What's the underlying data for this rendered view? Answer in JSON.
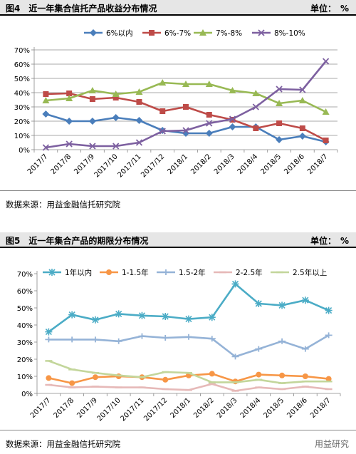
{
  "figures": [
    {
      "title": "图4　近一年集合信托产品收益分布情况",
      "unit": "单位：　%",
      "source": "数据来源：用益金融信托研究院"
    },
    {
      "title": "图5　近一年集合产品的期限分布情况",
      "unit": "单位：　%",
      "source": "数据来源：用益金融信托研究院"
    }
  ],
  "watermark": "用益研究",
  "chart_data": [
    {
      "type": "line",
      "categories": [
        "2017/7",
        "2017/8",
        "2017/9",
        "2017/10",
        "2017/11",
        "2017/12",
        "2018/1",
        "2018/2",
        "2018/3",
        "2018/4",
        "2018/5",
        "2018/6",
        "2018/7"
      ],
      "yticks": [
        "0%",
        "10%",
        "20%",
        "30%",
        "40%",
        "50%",
        "60%",
        "70%"
      ],
      "ylim": [
        0,
        70
      ],
      "grid": true,
      "legend_position": "top",
      "series": [
        {
          "name": "6%以内",
          "color": "#4a7ebb",
          "marker": "diamond",
          "values": [
            25,
            20,
            20,
            22.5,
            20.5,
            13.5,
            11.5,
            11.5,
            16,
            16,
            7,
            9.5,
            5.5
          ]
        },
        {
          "name": "6%-7%",
          "color": "#be4b48",
          "marker": "square",
          "values": [
            39,
            39.5,
            35.5,
            36.5,
            33.5,
            27,
            30,
            24.5,
            21,
            15,
            18.5,
            15,
            6.5
          ]
        },
        {
          "name": "7%-8%",
          "color": "#98b954",
          "marker": "triangle",
          "values": [
            34.5,
            36,
            41.5,
            39,
            40.5,
            47,
            46,
            46,
            41.5,
            39.5,
            32.5,
            34.5,
            26.5
          ]
        },
        {
          "name": "8%-10%",
          "color": "#7d60a0",
          "marker": "x",
          "values": [
            1.5,
            4,
            2.5,
            2.5,
            5,
            13,
            13.5,
            18.5,
            21.5,
            30,
            42.5,
            42,
            62
          ]
        }
      ]
    },
    {
      "type": "line",
      "categories": [
        "2017/7",
        "2017/8",
        "2017/9",
        "2017/10",
        "2017/11",
        "2017/12",
        "2018/1",
        "2018/2",
        "2018/3",
        "2018/4",
        "2018/5",
        "2018/6",
        "2018/7"
      ],
      "yticks": [
        "0%",
        "10%",
        "20%",
        "30%",
        "40%",
        "50%",
        "60%",
        "70%"
      ],
      "ylim": [
        0,
        70
      ],
      "grid": false,
      "legend_position": "top",
      "series": [
        {
          "name": "1年以内",
          "color": "#4bacc6",
          "marker": "star",
          "values": [
            36,
            46,
            43,
            46.5,
            45.5,
            45,
            43.5,
            44.5,
            64,
            52.5,
            51.5,
            54.5,
            48.5
          ]
        },
        {
          "name": "1-1.5年",
          "color": "#f79646",
          "marker": "circle",
          "values": [
            9,
            6,
            9.5,
            10,
            9.5,
            8,
            10.5,
            11.5,
            7,
            11,
            10.5,
            10,
            8.5
          ]
        },
        {
          "name": "1.5-2年",
          "color": "#95b3d7",
          "marker": "plus",
          "values": [
            31.5,
            31.5,
            31.5,
            30.5,
            33.5,
            32.5,
            33,
            32,
            21.5,
            26,
            30.5,
            26,
            34
          ]
        },
        {
          "name": "2-2.5年",
          "color": "#e6b9b8",
          "marker": "dash",
          "values": [
            5,
            3.5,
            4,
            3.5,
            3.5,
            2.5,
            2,
            5.5,
            1.5,
            3.5,
            2.5,
            4,
            2.5
          ]
        },
        {
          "name": "2.5年以上",
          "color": "#c3d69b",
          "marker": "dash",
          "values": [
            19,
            14,
            12,
            10.5,
            9.5,
            12.5,
            12,
            6.5,
            6.5,
            8,
            6,
            7,
            7
          ]
        }
      ]
    }
  ]
}
